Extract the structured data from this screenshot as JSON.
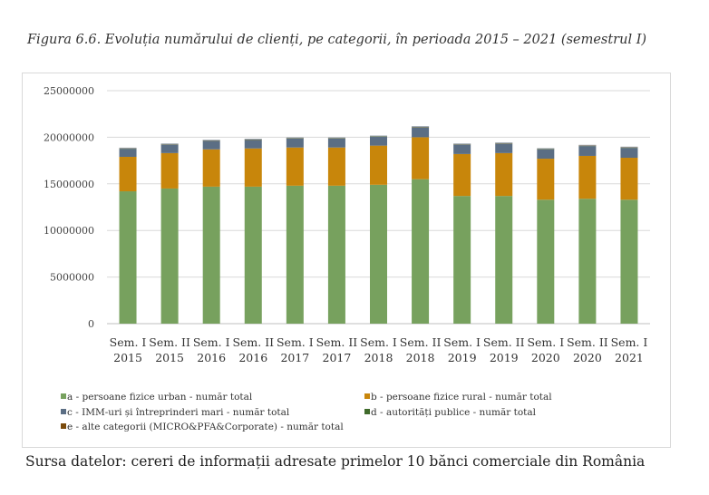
{
  "caption": "Figura 6.6. Evoluția numărului de clienți, pe categorii, în perioada 2015 – 2021 (semestrul I)",
  "source": "Sursa datelor: cereri de informații adresate primelor 10 bănci comerciale din România",
  "chart_data": {
    "type": "bar",
    "stacked": true,
    "categories": [
      [
        "Sem. I",
        "2015"
      ],
      [
        "Sem. II",
        "2015"
      ],
      [
        "Sem. I",
        "2016"
      ],
      [
        "Sem. II",
        "2016"
      ],
      [
        "Sem. I",
        "2017"
      ],
      [
        "Sem. II",
        "2017"
      ],
      [
        "Sem. I",
        "2018"
      ],
      [
        "Sem. II",
        "2018"
      ],
      [
        "Sem. I",
        "2019"
      ],
      [
        "Sem. II",
        "2019"
      ],
      [
        "Sem. I",
        "2020"
      ],
      [
        "Sem. II",
        "2020"
      ],
      [
        "Sem. I",
        "2021"
      ]
    ],
    "ylim": [
      0,
      25000000
    ],
    "yticks": [
      0,
      5000000,
      10000000,
      15000000,
      20000000,
      25000000
    ],
    "ytick_labels": [
      "0",
      "5000000",
      "10000000",
      "15000000",
      "20000000",
      "25000000"
    ],
    "grid": true,
    "legend_position": "bottom",
    "series": [
      {
        "name": "a - persoane fizice urban  - număr total",
        "color": "#77a15e",
        "values": [
          14200000,
          14500000,
          14700000,
          14700000,
          14800000,
          14800000,
          14900000,
          15500000,
          13700000,
          13700000,
          13300000,
          13400000,
          13300000
        ]
      },
      {
        "name": "b - persoane fizice rural - număr total",
        "color": "#c8860b",
        "values": [
          3700000,
          3800000,
          4000000,
          4100000,
          4100000,
          4100000,
          4200000,
          4500000,
          4500000,
          4600000,
          4400000,
          4600000,
          4500000
        ]
      },
      {
        "name": "c - IMM-uri și întreprinderi mari - număr total",
        "color": "#5b6e84",
        "values": [
          850000,
          900000,
          900000,
          900000,
          950000,
          950000,
          950000,
          1050000,
          1000000,
          1000000,
          1000000,
          1050000,
          1050000
        ]
      },
      {
        "name": "d - autorități publice - număr total",
        "color": "#3f6a2b",
        "values": [
          30000,
          30000,
          30000,
          30000,
          30000,
          30000,
          30000,
          30000,
          30000,
          30000,
          30000,
          30000,
          30000
        ]
      },
      {
        "name": "e - alte categorii (MICRO&PFA&Corporate) - număr total",
        "color": "#7a4a0b",
        "values": [
          60000,
          60000,
          60000,
          60000,
          60000,
          60000,
          60000,
          60000,
          60000,
          60000,
          60000,
          60000,
          60000
        ]
      }
    ]
  }
}
